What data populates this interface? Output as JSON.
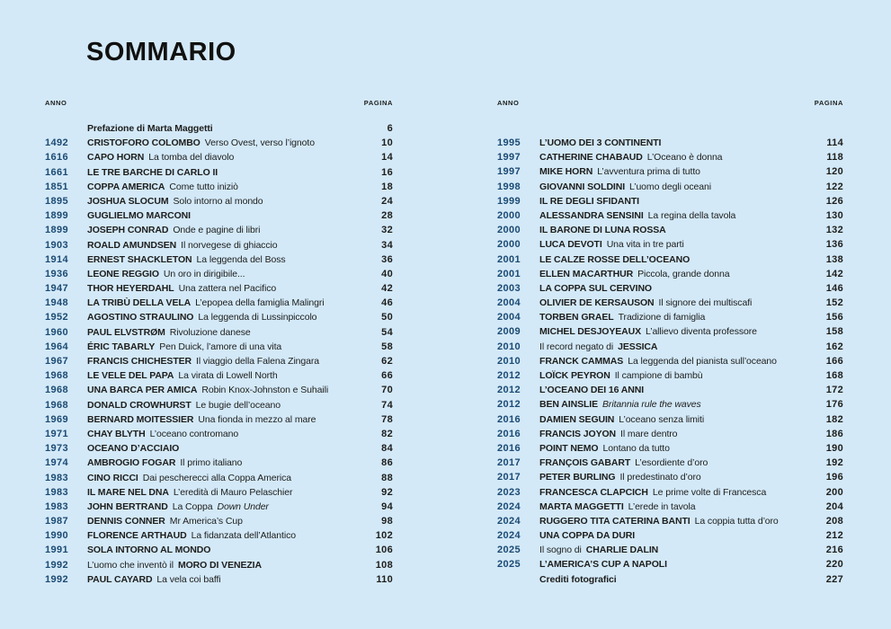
{
  "theme": {
    "background": "#d3e9f8",
    "year_color": "#1b4a73",
    "text_color": "#1d1d1b"
  },
  "page": {
    "title": "SOMMARIO"
  },
  "headers": {
    "year": "ANNO",
    "page": "PAGINA"
  },
  "columns": [
    {
      "entries": [
        {
          "year": "",
          "page": "6",
          "segments": [
            {
              "t": "Prefazione di Marta Maggetti",
              "s": "b"
            }
          ]
        },
        {
          "year": "1492",
          "page": "10",
          "segments": [
            {
              "t": "CRISTOFORO COLOMBO",
              "s": "b"
            },
            {
              "t": "Verso Ovest, verso l’ignoto",
              "s": "r"
            }
          ]
        },
        {
          "year": "1616",
          "page": "14",
          "segments": [
            {
              "t": "CAPO HORN",
              "s": "b"
            },
            {
              "t": "La tomba del diavolo",
              "s": "r"
            }
          ]
        },
        {
          "year": "1661",
          "page": "16",
          "segments": [
            {
              "t": "LE TRE BARCHE DI CARLO II",
              "s": "b"
            }
          ]
        },
        {
          "year": "1851",
          "page": "18",
          "segments": [
            {
              "t": "COPPA AMERICA",
              "s": "b"
            },
            {
              "t": "Come tutto iniziò",
              "s": "r"
            }
          ]
        },
        {
          "year": "1895",
          "page": "24",
          "segments": [
            {
              "t": "JOSHUA SLOCUM",
              "s": "b"
            },
            {
              "t": "Solo intorno al mondo",
              "s": "r"
            }
          ]
        },
        {
          "year": "1899",
          "page": "28",
          "segments": [
            {
              "t": "GUGLIELMO MARCONI",
              "s": "b"
            }
          ]
        },
        {
          "year": "1899",
          "page": "32",
          "segments": [
            {
              "t": "JOSEPH CONRAD",
              "s": "b"
            },
            {
              "t": "Onde e pagine di libri",
              "s": "r"
            }
          ]
        },
        {
          "year": "1903",
          "page": "34",
          "segments": [
            {
              "t": "ROALD AMUNDSEN",
              "s": "b"
            },
            {
              "t": "Il norvegese di ghiaccio",
              "s": "r"
            }
          ]
        },
        {
          "year": "1914",
          "page": "36",
          "segments": [
            {
              "t": "ERNEST SHACKLETON",
              "s": "b"
            },
            {
              "t": "La leggenda del Boss",
              "s": "r"
            }
          ]
        },
        {
          "year": "1936",
          "page": "40",
          "segments": [
            {
              "t": "LEONE REGGIO",
              "s": "b"
            },
            {
              "t": "Un oro in dirigibile...",
              "s": "r"
            }
          ]
        },
        {
          "year": "1947",
          "page": "42",
          "segments": [
            {
              "t": "THOR HEYERDAHL",
              "s": "b"
            },
            {
              "t": "Una zattera nel Pacifico",
              "s": "r"
            }
          ]
        },
        {
          "year": "1948",
          "page": "46",
          "segments": [
            {
              "t": "LA TRIBÙ DELLA VELA",
              "s": "b"
            },
            {
              "t": "L’epopea della famiglia Malingri",
              "s": "r"
            }
          ]
        },
        {
          "year": "1952",
          "page": "50",
          "segments": [
            {
              "t": "AGOSTINO STRAULINO",
              "s": "b"
            },
            {
              "t": "La leggenda di Lussinpiccolo",
              "s": "r"
            }
          ]
        },
        {
          "year": "1960",
          "page": "54",
          "segments": [
            {
              "t": "PAUL ELVSTRØM",
              "s": "b"
            },
            {
              "t": "Rivoluzione danese",
              "s": "r"
            }
          ]
        },
        {
          "year": "1964",
          "page": "58",
          "segments": [
            {
              "t": "ÉRIC TABARLY",
              "s": "b"
            },
            {
              "t": "Pen Duick, l’amore di una vita",
              "s": "r"
            }
          ]
        },
        {
          "year": "1967",
          "page": "62",
          "segments": [
            {
              "t": "FRANCIS CHICHESTER",
              "s": "b"
            },
            {
              "t": "Il viaggio della Falena Zingara",
              "s": "r"
            }
          ]
        },
        {
          "year": "1968",
          "page": "66",
          "segments": [
            {
              "t": "LE VELE DEL PAPA",
              "s": "b"
            },
            {
              "t": "La virata di Lowell North",
              "s": "r"
            }
          ]
        },
        {
          "year": "1968",
          "page": "70",
          "segments": [
            {
              "t": "UNA BARCA PER AMICA",
              "s": "b"
            },
            {
              "t": "Robin Knox-Johnston e Suhaili",
              "s": "r"
            }
          ]
        },
        {
          "year": "1968",
          "page": "74",
          "segments": [
            {
              "t": "DONALD CROWHURST",
              "s": "b"
            },
            {
              "t": "Le bugie dell’oceano",
              "s": "r"
            }
          ]
        },
        {
          "year": "1969",
          "page": "78",
          "segments": [
            {
              "t": "BERNARD MOITESSIER",
              "s": "b"
            },
            {
              "t": "Una fionda in mezzo al mare",
              "s": "r"
            }
          ]
        },
        {
          "year": "1971",
          "page": "82",
          "segments": [
            {
              "t": "CHAY BLYTH",
              "s": "b"
            },
            {
              "t": "L’oceano contromano",
              "s": "r"
            }
          ]
        },
        {
          "year": "1973",
          "page": "84",
          "segments": [
            {
              "t": "OCEANO D’ACCIAIO",
              "s": "b"
            }
          ]
        },
        {
          "year": "1974",
          "page": "86",
          "segments": [
            {
              "t": "AMBROGIO FOGAR",
              "s": "b"
            },
            {
              "t": "Il primo italiano",
              "s": "r"
            }
          ]
        },
        {
          "year": "1983",
          "page": "88",
          "segments": [
            {
              "t": "CINO RICCI",
              "s": "b"
            },
            {
              "t": "Dai pescherecci alla Coppa America",
              "s": "r"
            }
          ]
        },
        {
          "year": "1983",
          "page": "92",
          "segments": [
            {
              "t": "IL MARE NEL DNA",
              "s": "b"
            },
            {
              "t": "L’eredità di Mauro Pelaschier",
              "s": "r"
            }
          ]
        },
        {
          "year": "1983",
          "page": "94",
          "segments": [
            {
              "t": "JOHN BERTRAND",
              "s": "b"
            },
            {
              "t": "La Coppa",
              "s": "r"
            },
            {
              "t": "Down Under",
              "s": "i"
            }
          ]
        },
        {
          "year": "1987",
          "page": "98",
          "segments": [
            {
              "t": "DENNIS CONNER",
              "s": "b"
            },
            {
              "t": "Mr America’s Cup",
              "s": "r"
            }
          ]
        },
        {
          "year": "1990",
          "page": "102",
          "segments": [
            {
              "t": "FLORENCE ARTHAUD",
              "s": "b"
            },
            {
              "t": "La fidanzata dell’Atlantico",
              "s": "r"
            }
          ]
        },
        {
          "year": "1991",
          "page": "106",
          "segments": [
            {
              "t": "SOLA INTORNO AL MONDO",
              "s": "b"
            }
          ]
        },
        {
          "year": "1992",
          "page": "108",
          "segments": [
            {
              "t": "L’uomo che inventò il",
              "s": "r"
            },
            {
              "t": "MORO DI VENEZIA",
              "s": "b"
            }
          ]
        },
        {
          "year": "1992",
          "page": "110",
          "segments": [
            {
              "t": "PAUL CAYARD",
              "s": "b"
            },
            {
              "t": "La vela coi baffi",
              "s": "r"
            }
          ]
        }
      ]
    },
    {
      "entries": [
        {
          "year": "1995",
          "page": "114",
          "segments": [
            {
              "t": "L’UOMO DEI 3 CONTINENTI",
              "s": "b"
            }
          ]
        },
        {
          "year": "1997",
          "page": "118",
          "segments": [
            {
              "t": "CATHERINE CHABAUD",
              "s": "b"
            },
            {
              "t": "L’Oceano è donna",
              "s": "r"
            }
          ]
        },
        {
          "year": "1997",
          "page": "120",
          "segments": [
            {
              "t": "MIKE HORN",
              "s": "b"
            },
            {
              "t": "L’avventura prima di tutto",
              "s": "r"
            }
          ]
        },
        {
          "year": "1998",
          "page": "122",
          "segments": [
            {
              "t": "GIOVANNI SOLDINI",
              "s": "b"
            },
            {
              "t": "L’uomo degli oceani",
              "s": "r"
            }
          ]
        },
        {
          "year": "1999",
          "page": "126",
          "segments": [
            {
              "t": "IL RE DEGLI SFIDANTI",
              "s": "b"
            }
          ]
        },
        {
          "year": "2000",
          "page": "130",
          "segments": [
            {
              "t": "ALESSANDRA SENSINI",
              "s": "b"
            },
            {
              "t": "La regina della tavola",
              "s": "r"
            }
          ]
        },
        {
          "year": "2000",
          "page": "132",
          "segments": [
            {
              "t": "IL BARONE DI LUNA ROSSA",
              "s": "b"
            }
          ]
        },
        {
          "year": "2000",
          "page": "136",
          "segments": [
            {
              "t": "LUCA DEVOTI",
              "s": "b"
            },
            {
              "t": "Una vita in tre parti",
              "s": "r"
            }
          ]
        },
        {
          "year": "2001",
          "page": "138",
          "segments": [
            {
              "t": "LE CALZE ROSSE DELL’OCEANO",
              "s": "b"
            }
          ]
        },
        {
          "year": "2001",
          "page": "142",
          "segments": [
            {
              "t": "ELLEN MACARTHUR",
              "s": "b"
            },
            {
              "t": "Piccola, grande donna",
              "s": "r"
            }
          ]
        },
        {
          "year": "2003",
          "page": "146",
          "segments": [
            {
              "t": "LA COPPA SUL CERVINO",
              "s": "b"
            }
          ]
        },
        {
          "year": "2004",
          "page": "152",
          "segments": [
            {
              "t": "OLIVIER DE KERSAUSON",
              "s": "b"
            },
            {
              "t": "Il signore dei multiscafi",
              "s": "r"
            }
          ]
        },
        {
          "year": "2004",
          "page": "156",
          "segments": [
            {
              "t": "TORBEN GRAEL",
              "s": "b"
            },
            {
              "t": "Tradizione di famiglia",
              "s": "r"
            }
          ]
        },
        {
          "year": "2009",
          "page": "158",
          "segments": [
            {
              "t": "MICHEL DESJOYEAUX",
              "s": "b"
            },
            {
              "t": "L’allievo diventa professore",
              "s": "r"
            }
          ]
        },
        {
          "year": "2010",
          "page": "162",
          "segments": [
            {
              "t": "Il record negato di",
              "s": "r"
            },
            {
              "t": "JESSICA",
              "s": "b"
            }
          ]
        },
        {
          "year": "2010",
          "page": "166",
          "segments": [
            {
              "t": "FRANCK CAMMAS",
              "s": "b"
            },
            {
              "t": "La leggenda del pianista sull’oceano",
              "s": "r"
            }
          ]
        },
        {
          "year": "2012",
          "page": "168",
          "segments": [
            {
              "t": "LOÏCK PEYRON",
              "s": "b"
            },
            {
              "t": "Il campione di bambù",
              "s": "r"
            }
          ]
        },
        {
          "year": "2012",
          "page": "172",
          "segments": [
            {
              "t": "L’OCEANO DEI 16 ANNI",
              "s": "b"
            }
          ]
        },
        {
          "year": "2012",
          "page": "176",
          "segments": [
            {
              "t": "BEN AINSLIE",
              "s": "b"
            },
            {
              "t": "Britannia rule the waves",
              "s": "i"
            }
          ]
        },
        {
          "year": "2016",
          "page": "182",
          "segments": [
            {
              "t": "DAMIEN SEGUIN",
              "s": "b"
            },
            {
              "t": "L’oceano senza limiti",
              "s": "r"
            }
          ]
        },
        {
          "year": "2016",
          "page": "186",
          "segments": [
            {
              "t": "FRANCIS JOYON",
              "s": "b"
            },
            {
              "t": "Il mare dentro",
              "s": "r"
            }
          ]
        },
        {
          "year": "2016",
          "page": "190",
          "segments": [
            {
              "t": "POINT NEMO",
              "s": "b"
            },
            {
              "t": "Lontano da tutto",
              "s": "r"
            }
          ]
        },
        {
          "year": "2017",
          "page": "192",
          "segments": [
            {
              "t": "FRANÇOIS GABART",
              "s": "b"
            },
            {
              "t": "L’esordiente d’oro",
              "s": "r"
            }
          ]
        },
        {
          "year": "2017",
          "page": "196",
          "segments": [
            {
              "t": "PETER BURLING",
              "s": "b"
            },
            {
              "t": "Il predestinato d’oro",
              "s": "r"
            }
          ]
        },
        {
          "year": "2023",
          "page": "200",
          "segments": [
            {
              "t": "FRANCESCA CLAPCICH",
              "s": "b"
            },
            {
              "t": "Le prime volte di Francesca",
              "s": "r"
            }
          ]
        },
        {
          "year": "2024",
          "page": "204",
          "segments": [
            {
              "t": "MARTA MAGGETTI",
              "s": "b"
            },
            {
              "t": "L’erede in tavola",
              "s": "r"
            }
          ]
        },
        {
          "year": "2024",
          "page": "208",
          "segments": [
            {
              "t": "RUGGERO TITA CATERINA BANTI",
              "s": "b"
            },
            {
              "t": "La coppia tutta d’oro",
              "s": "r"
            }
          ]
        },
        {
          "year": "2024",
          "page": "212",
          "segments": [
            {
              "t": "UNA COPPA DA DURI",
              "s": "b"
            }
          ]
        },
        {
          "year": "2025",
          "page": "216",
          "segments": [
            {
              "t": "Il sogno di",
              "s": "r"
            },
            {
              "t": "CHARLIE DALIN",
              "s": "b"
            }
          ]
        },
        {
          "year": "2025",
          "page": "220",
          "segments": [
            {
              "t": "L’AMERICA’S CUP A NAPOLI",
              "s": "b"
            }
          ]
        },
        {
          "year": "",
          "page": "227",
          "segments": [
            {
              "t": "Crediti fotografici",
              "s": "b"
            }
          ]
        }
      ]
    }
  ]
}
